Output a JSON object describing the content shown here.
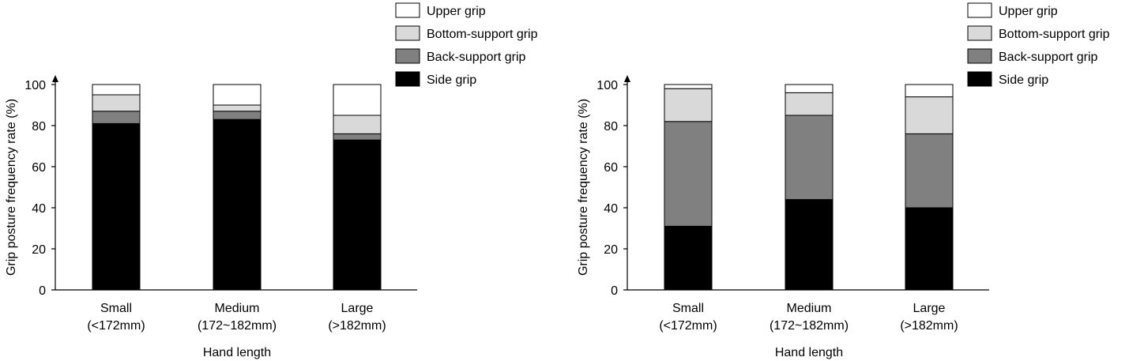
{
  "chart_data": [
    {
      "type": "bar",
      "stacked": true,
      "xlabel": "Hand length",
      "ylabel": "Grip posture frequency rate (%)",
      "ylim": [
        0,
        100
      ],
      "yticks": [
        "0",
        "20",
        "40",
        "60",
        "80",
        "100"
      ],
      "categories": [
        {
          "name": "Small",
          "range": "(<172mm)"
        },
        {
          "name": "Medium",
          "range": "(172~182mm)"
        },
        {
          "name": "Large",
          "range": "(>182mm)"
        }
      ],
      "series": [
        {
          "name": "Side grip",
          "color": "#000000",
          "values": [
            81,
            83,
            73
          ]
        },
        {
          "name": "Back-support grip",
          "color": "#808080",
          "values": [
            6,
            4,
            3
          ]
        },
        {
          "name": "Bottom-support grip",
          "color": "#d9d9d9",
          "values": [
            8,
            3,
            9
          ]
        },
        {
          "name": "Upper grip",
          "color": "#ffffff",
          "values": [
            5,
            10,
            15
          ]
        }
      ],
      "legend_position": "top-right",
      "legend_order": [
        "Upper grip",
        "Bottom-support grip",
        "Back-support grip",
        "Side grip"
      ]
    },
    {
      "type": "bar",
      "stacked": true,
      "xlabel": "Hand length",
      "ylabel": "Grip posture frequency rate (%)",
      "ylim": [
        0,
        100
      ],
      "yticks": [
        "0",
        "20",
        "40",
        "60",
        "80",
        "100"
      ],
      "categories": [
        {
          "name": "Small",
          "range": "(<172mm)"
        },
        {
          "name": "Medium",
          "range": "(172~182mm)"
        },
        {
          "name": "Large",
          "range": "(>182mm)"
        }
      ],
      "series": [
        {
          "name": "Side grip",
          "color": "#000000",
          "values": [
            31,
            44,
            40
          ]
        },
        {
          "name": "Back-support grip",
          "color": "#808080",
          "values": [
            51,
            41,
            36
          ]
        },
        {
          "name": "Bottom-support grip",
          "color": "#d9d9d9",
          "values": [
            16,
            11,
            18
          ]
        },
        {
          "name": "Upper grip",
          "color": "#ffffff",
          "values": [
            2,
            4,
            6
          ]
        }
      ],
      "legend_position": "top-right",
      "legend_order": [
        "Upper grip",
        "Bottom-support grip",
        "Back-support grip",
        "Side grip"
      ]
    }
  ]
}
